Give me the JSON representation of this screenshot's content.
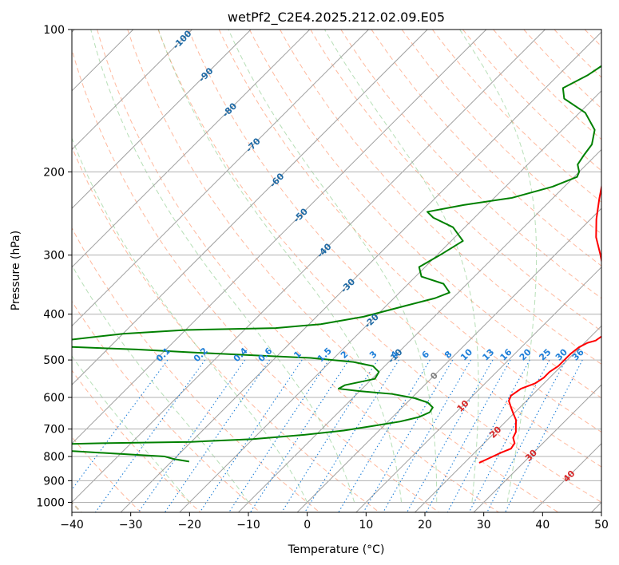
{
  "chart_data": {
    "type": "line",
    "title": "wetPf2_C2E4.2025.212.02.09.E05",
    "xlabel": "Temperature (°C)",
    "ylabel": "Pressure (hPa)",
    "xlim": [
      -40,
      50
    ],
    "ylim": [
      1050,
      100
    ],
    "y_scale": "log",
    "skew": true,
    "grid": true,
    "x_ticks": [
      -40,
      -30,
      -20,
      -10,
      0,
      10,
      20,
      30,
      40,
      50
    ],
    "x_tick_labels": [
      "−40",
      "−30",
      "−20",
      "−10",
      "0",
      "10",
      "20",
      "30",
      "40",
      "50"
    ],
    "y_ticks": [
      100,
      200,
      300,
      400,
      500,
      600,
      700,
      800,
      900,
      1000
    ],
    "y_tick_labels": [
      "100",
      "200",
      "300",
      "400",
      "500",
      "600",
      "700",
      "800",
      "900",
      "1000"
    ],
    "colors": {
      "temperature": "#ff0000",
      "dewpoint": "#008000",
      "isotherm": "#a0a0a0",
      "dry_adiabat": "#ff9b75",
      "moist_adiabat": "#6fbf6f",
      "dry_adiabat_dark": "#b5966b",
      "mixing_ratio": "#1e7fd8",
      "isotherm_label_cold": "#1f6aa5",
      "isotherm_label_warm": "#d62728",
      "isotherm_label_zero": "#808080"
    },
    "isotherm_labels": [
      {
        "text": "-100",
        "t": -100
      },
      {
        "text": "-90",
        "t": -90
      },
      {
        "text": "-80",
        "t": -80
      },
      {
        "text": "-70",
        "t": -70
      },
      {
        "text": "-60",
        "t": -60
      },
      {
        "text": "-50",
        "t": -50
      },
      {
        "text": "-40",
        "t": -40
      },
      {
        "text": "-30",
        "t": -30
      },
      {
        "text": "-20",
        "t": -20
      },
      {
        "text": "-10",
        "t": -10
      },
      {
        "text": "0",
        "t": 0
      },
      {
        "text": "10",
        "t": 10
      },
      {
        "text": "20",
        "t": 20
      },
      {
        "text": "30",
        "t": 30
      },
      {
        "text": "40",
        "t": 40
      }
    ],
    "mixing_ratio_labels": [
      "0.1",
      "0.2",
      "0.4",
      "0.6",
      "1",
      "1.5",
      "2",
      "3",
      "4",
      "6",
      "8",
      "10",
      "13",
      "16",
      "20",
      "25",
      "30",
      "36"
    ],
    "series": [
      {
        "name": "temperature",
        "points": [
          [
            22.5,
            825
          ],
          [
            23.5,
            805
          ],
          [
            24.5,
            785
          ],
          [
            25.5,
            770
          ],
          [
            25.2,
            750
          ],
          [
            24,
            730
          ],
          [
            23.5,
            710
          ],
          [
            22.5,
            690
          ],
          [
            21.5,
            670
          ],
          [
            20,
            650
          ],
          [
            18.5,
            630
          ],
          [
            17,
            610
          ],
          [
            16.5,
            595
          ],
          [
            17,
            575
          ],
          [
            18.5,
            560
          ],
          [
            19,
            545
          ],
          [
            19,
            530
          ],
          [
            19.5,
            515
          ],
          [
            19.5,
            500
          ],
          [
            19.5,
            485
          ],
          [
            19.8,
            470
          ],
          [
            20.5,
            460
          ],
          [
            21.5,
            455
          ],
          [
            22,
            440
          ],
          [
            21.8,
            425
          ],
          [
            20.5,
            410
          ],
          [
            19,
            395
          ],
          [
            16.5,
            370
          ],
          [
            13.5,
            345
          ],
          [
            10.5,
            320
          ],
          [
            7.5,
            298
          ],
          [
            4,
            275
          ],
          [
            1,
            252
          ],
          [
            -2,
            228
          ],
          [
            -5,
            205
          ],
          [
            -8,
            185
          ],
          [
            -11,
            168
          ],
          [
            -14,
            155
          ],
          [
            -17.5,
            143
          ],
          [
            -20,
            133
          ],
          [
            -21,
            125
          ],
          [
            -22,
            118
          ],
          [
            -23,
            112
          ],
          [
            -23.5,
            106
          ],
          [
            -24,
            100
          ]
        ]
      },
      {
        "name": "dewpoint",
        "points": [
          [
            -27,
            820
          ],
          [
            -30,
            810
          ],
          [
            -32,
            800
          ],
          [
            -40,
            790
          ],
          [
            -48,
            780
          ],
          [
            -65,
            760
          ],
          [
            -45,
            750
          ],
          [
            -30,
            745
          ],
          [
            -20,
            735
          ],
          [
            -12,
            720
          ],
          [
            -6,
            705
          ],
          [
            -2,
            690
          ],
          [
            2,
            675
          ],
          [
            4.5,
            660
          ],
          [
            5.5,
            645
          ],
          [
            5.2,
            630
          ],
          [
            3.5,
            615
          ],
          [
            0.5,
            602
          ],
          [
            -4,
            590
          ],
          [
            -10,
            582
          ],
          [
            -14,
            575
          ],
          [
            -13.5,
            565
          ],
          [
            -9.5,
            548
          ],
          [
            -10,
            530
          ],
          [
            -12,
            515
          ],
          [
            -16,
            505
          ],
          [
            -24,
            495
          ],
          [
            -45,
            482
          ],
          [
            -55,
            475
          ],
          [
            -75,
            465
          ],
          [
            -60,
            440
          ],
          [
            -50,
            432
          ],
          [
            -35,
            428
          ],
          [
            -28,
            420
          ],
          [
            -22,
            405
          ],
          [
            -17,
            385
          ],
          [
            -13,
            370
          ],
          [
            -11.5,
            360
          ],
          [
            -14,
            345
          ],
          [
            -19,
            333
          ],
          [
            -21,
            318
          ],
          [
            -19.5,
            300
          ],
          [
            -18,
            280
          ],
          [
            -22,
            262
          ],
          [
            -27,
            250
          ],
          [
            -29,
            243
          ],
          [
            -24,
            235
          ],
          [
            -17,
            227
          ],
          [
            -12,
            215
          ],
          [
            -9.5,
            205
          ],
          [
            -10,
            200
          ],
          [
            -11.5,
            193
          ],
          [
            -12,
            185
          ],
          [
            -12.5,
            175
          ],
          [
            -14.5,
            163
          ],
          [
            -19,
            150
          ],
          [
            -25,
            140
          ],
          [
            -27,
            133
          ],
          [
            -25,
            125
          ],
          [
            -24,
            118
          ],
          [
            -24,
            113
          ],
          [
            -24.5,
            106
          ],
          [
            -24,
            100
          ]
        ]
      }
    ]
  }
}
